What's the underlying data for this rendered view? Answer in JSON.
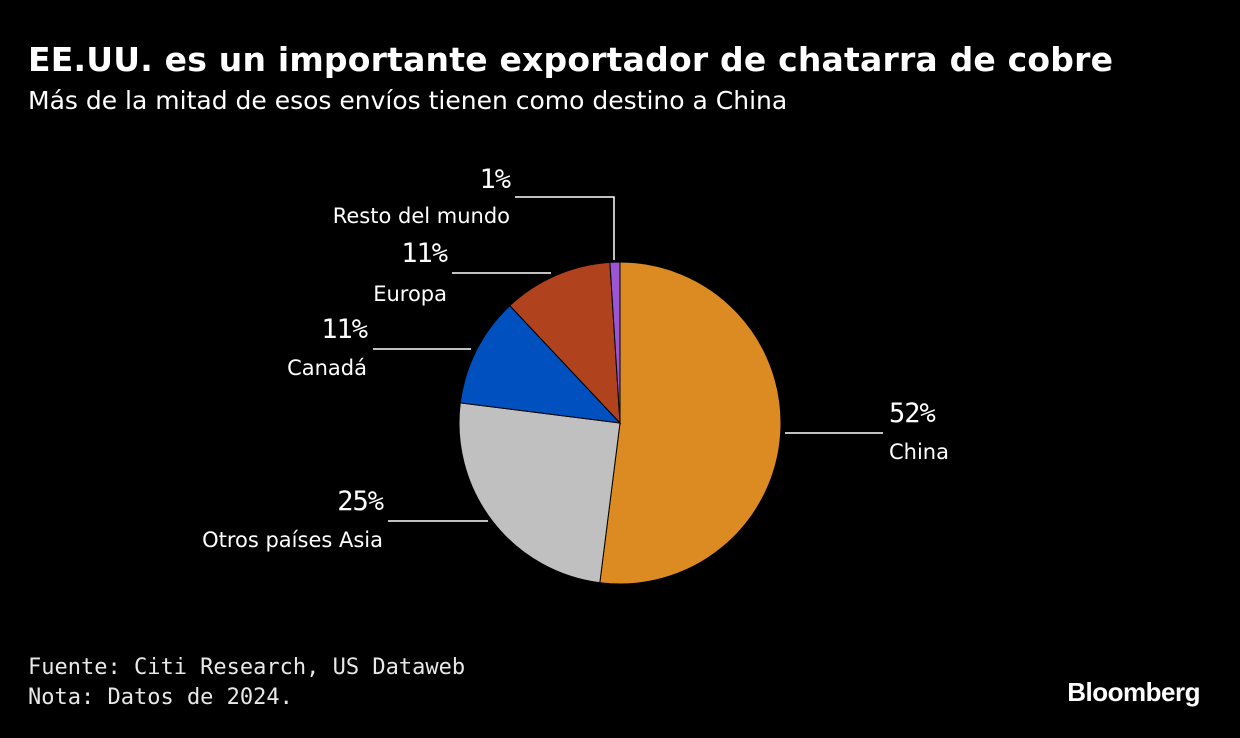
{
  "header": {
    "title": "EE.UU. es un importante exportador de chatarra de cobre",
    "subtitle": "Más de la mitad de esos envíos tienen como destino a China"
  },
  "chart_data": {
    "type": "pie",
    "title": "EE.UU. es un importante exportador de chatarra de cobre",
    "subtitle": "Más de la mitad de esos envíos tienen como destino a China",
    "unit": "%",
    "slices": [
      {
        "label": "China",
        "value": 52,
        "display": "52%",
        "color": "#dc8a22",
        "side": "right"
      },
      {
        "label": "Otros países Asia",
        "value": 25,
        "display": "25%",
        "color": "#c0c0c0",
        "side": "left"
      },
      {
        "label": "Canadá",
        "value": 11,
        "display": "11%",
        "color": "#0050bf",
        "side": "left"
      },
      {
        "label": "Europa",
        "value": 11,
        "display": "11%",
        "color": "#b0421e",
        "side": "left"
      },
      {
        "label": "Resto del mundo",
        "value": 1,
        "display": "1%",
        "color": "#9a56d6",
        "side": "left"
      }
    ]
  },
  "footer": {
    "source": "Fuente: Citi Research, US Dataweb",
    "note": "Nota: Datos de 2024."
  },
  "brand": {
    "name": "Bloomberg"
  }
}
